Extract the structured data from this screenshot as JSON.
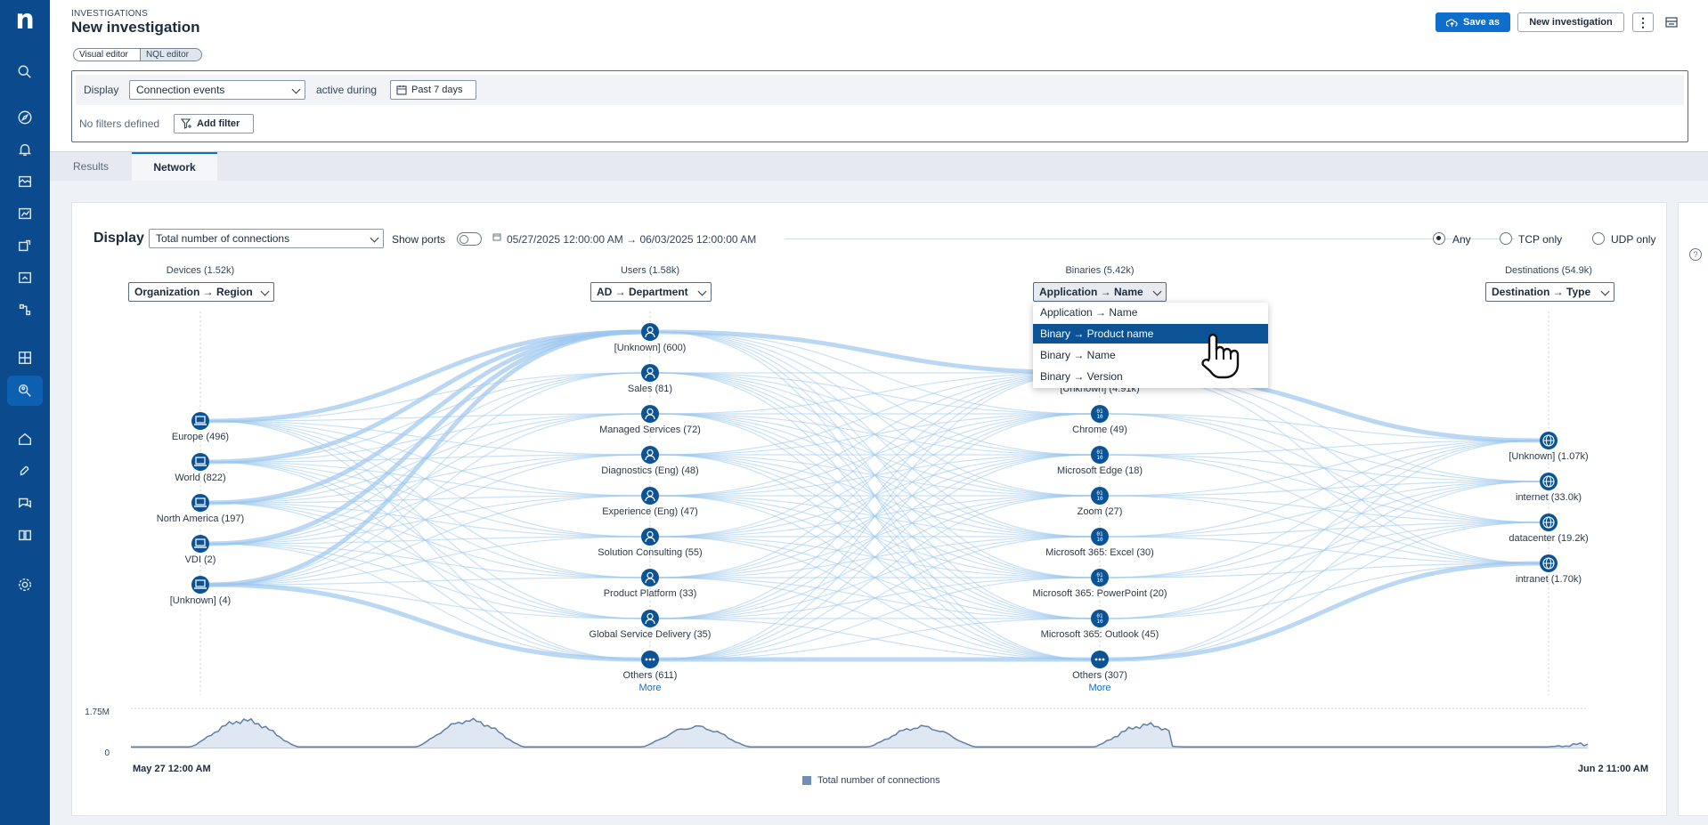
{
  "header": {
    "breadcrumb": "INVESTIGATIONS",
    "title": "New investigation",
    "save_as": "Save as",
    "new_investigation": "New investigation",
    "modes": [
      "Visual editor",
      "NQL editor"
    ]
  },
  "query": {
    "display_label": "Display",
    "display_value": "Connection events",
    "active_during": "active during",
    "period": "Past 7 days",
    "no_filters": "No filters defined",
    "add_filter": "Add filter"
  },
  "tabs": [
    "Results",
    "Network"
  ],
  "toolbar": {
    "display_label": "Display",
    "metric": "Total number of connections",
    "show_ports": "Show ports",
    "date_range": "05/27/2025 12:00:00 AM → 06/03/2025 12:00:00 AM",
    "protocols": [
      "Any",
      "TCP only",
      "UDP only"
    ],
    "selected_protocol": "Any"
  },
  "columns": [
    {
      "header": "Devices (1.52k)",
      "group": "Organization → Region",
      "nodes": [
        "Europe (496)",
        "World (822)",
        "North America (197)",
        "VDI (2)",
        "[Unknown] (4)"
      ]
    },
    {
      "header": "Users (1.58k)",
      "group": "AD → Department",
      "nodes": [
        "[Unknown] (600)",
        "Sales (81)",
        "Managed Services (72)",
        "Diagnostics (Eng) (48)",
        "Experience (Eng) (47)",
        "Solution Consulting (55)",
        "Product Platform (33)",
        "Global Service Delivery (35)",
        "Others (611)"
      ],
      "more": "More"
    },
    {
      "header": "Binaries (5.42k)",
      "group": "Application → Name",
      "nodes": [
        "[Unknown] (4.91k)",
        "Chrome (49)",
        "Microsoft Edge (18)",
        "Zoom (27)",
        "Microsoft 365: Excel (30)",
        "Microsoft 365: PowerPoint (20)",
        "Microsoft 365: Outlook (45)",
        "Others (307)"
      ],
      "more": "More"
    },
    {
      "header": "Destinations (54.9k)",
      "group": "Destination → Type",
      "nodes": [
        "[Unknown] (1.07k)",
        "internet (33.0k)",
        "datacenter (19.2k)",
        "intranet (1.70k)"
      ]
    }
  ],
  "dropdown": {
    "options": [
      "Application → Name",
      "Binary → Product name",
      "Binary → Name",
      "Binary → Version"
    ],
    "highlighted": "Binary → Product name"
  },
  "timeline": {
    "y_max": "1.75M",
    "y_min": "0",
    "x_start": "May 27 12:00 AM",
    "x_end": "Jun 2 11:00 AM",
    "legend": "Total number of connections"
  },
  "colors": {
    "sidebar": "#0b4a8c",
    "accent": "#0d6ecd",
    "node": "#0b5394",
    "flow": "#9cc8ee"
  }
}
